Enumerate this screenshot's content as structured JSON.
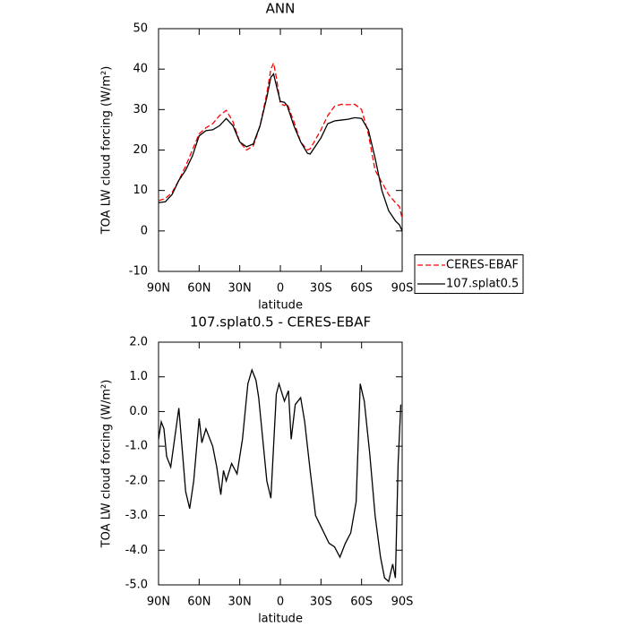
{
  "chart_data": [
    {
      "type": "line",
      "title": "ANN",
      "x_label": "latitude",
      "y_label": "TOA LW cloud forcing (W/m²)",
      "x": [
        90,
        85,
        80,
        75,
        70,
        65,
        60,
        55,
        50,
        45,
        40,
        35,
        30,
        25,
        20,
        15,
        10,
        7,
        5,
        3,
        0,
        -3,
        -5,
        -10,
        -15,
        -20,
        -22,
        -25,
        -30,
        -35,
        -40,
        -45,
        -50,
        -55,
        -60,
        -65,
        -70,
        -75,
        -80,
        -85,
        -88,
        -90
      ],
      "series": [
        {
          "name": "CERES-EBAF",
          "color": "#ff0000",
          "dash": true,
          "values": [
            7.5,
            8,
            9.5,
            12.5,
            16,
            20,
            24,
            25.5,
            26.5,
            28.5,
            29.8,
            27,
            22,
            20,
            21,
            26,
            34,
            40,
            41.5,
            38,
            31.5,
            31,
            31.5,
            27,
            22,
            20,
            20.3,
            22,
            25,
            28.5,
            30.8,
            31.3,
            31.2,
            31.3,
            30,
            24,
            15,
            12,
            9,
            7,
            6,
            3
          ]
        },
        {
          "name": "107.splat0.5",
          "color": "#000000",
          "dash": false,
          "values": [
            7,
            7.2,
            9,
            12.5,
            15,
            18.5,
            23.5,
            24.8,
            25,
            26,
            27.8,
            26,
            22,
            20.8,
            21.5,
            26,
            33,
            38,
            38.8,
            36,
            32,
            31.8,
            31,
            26,
            22,
            19.2,
            19,
            20.5,
            23,
            26.5,
            27.2,
            27.4,
            27.6,
            28,
            27.8,
            25,
            18,
            10,
            5,
            2.5,
            1.5,
            0
          ]
        }
      ],
      "xlim": [
        90,
        -90
      ],
      "xticks": [
        {
          "value": 90,
          "label": "90N"
        },
        {
          "value": 60,
          "label": "60N"
        },
        {
          "value": 30,
          "label": "30N"
        },
        0,
        {
          "value": -30,
          "label": "30S"
        },
        {
          "value": -60,
          "label": "60S"
        },
        {
          "value": -90,
          "label": "90S"
        }
      ],
      "ylim": [
        -10,
        50
      ],
      "yticks": [
        -10,
        0,
        10,
        20,
        30,
        40,
        50
      ],
      "legend": "right"
    },
    {
      "type": "line",
      "title": "107.splat0.5 - CERES-EBAF",
      "x_label": "latitude",
      "y_label": "TOA LW cloud forcing (W/m²)",
      "x": [
        90,
        88,
        86,
        84,
        81,
        75,
        70,
        67,
        64,
        60,
        58,
        55,
        52,
        50,
        47,
        44,
        42,
        40,
        36,
        32,
        28,
        24,
        21,
        18,
        16,
        13,
        10,
        7,
        5,
        3,
        1,
        -3,
        -6,
        -8,
        -11,
        -15,
        -18,
        -22,
        -26,
        -31,
        -36,
        -40,
        -44,
        -48,
        -52,
        -56,
        -59,
        -62,
        -66,
        -70,
        -74,
        -77,
        -80,
        -83,
        -85,
        -87,
        -89
      ],
      "series": [
        {
          "name": "107.splat0.5",
          "color": "#000000",
          "dash": false,
          "values": [
            -0.8,
            -0.3,
            -0.5,
            -1.3,
            -1.6,
            0.1,
            -2.3,
            -2.8,
            -2.0,
            -0.2,
            -0.9,
            -0.5,
            -0.8,
            -1.0,
            -1.6,
            -2.4,
            -1.7,
            -2.0,
            -1.5,
            -1.8,
            -0.8,
            0.8,
            1.2,
            0.9,
            0.4,
            -0.8,
            -2.0,
            -2.5,
            -1.0,
            0.5,
            0.8,
            0.3,
            0.6,
            -0.8,
            0.2,
            0.4,
            -0.3,
            -1.7,
            -3.0,
            -3.4,
            -3.8,
            -3.9,
            -4.2,
            -3.8,
            -3.5,
            -2.6,
            0.8,
            0.3,
            -1.2,
            -3.0,
            -4.2,
            -4.8,
            -4.9,
            -4.4,
            -4.8,
            -1.5,
            0.2
          ]
        }
      ],
      "xlim": [
        90,
        -90
      ],
      "xticks": [
        {
          "value": 90,
          "label": "90N"
        },
        {
          "value": 60,
          "label": "60N"
        },
        {
          "value": 30,
          "label": "30N"
        },
        0,
        {
          "value": -30,
          "label": "30S"
        },
        {
          "value": -60,
          "label": "60S"
        },
        {
          "value": -90,
          "label": "90S"
        }
      ],
      "ylim": [
        -5,
        2
      ],
      "yticks": [
        {
          "value": -5,
          "label": "-5.0"
        },
        {
          "value": -4,
          "label": "-4.0"
        },
        {
          "value": -3,
          "label": "-3.0"
        },
        {
          "value": -2,
          "label": "-2.0"
        },
        {
          "value": -1,
          "label": "-1.0"
        },
        {
          "value": 0,
          "label": "0.0"
        },
        {
          "value": 1,
          "label": "1.0"
        },
        {
          "value": 2,
          "label": "2.0"
        }
      ]
    }
  ]
}
